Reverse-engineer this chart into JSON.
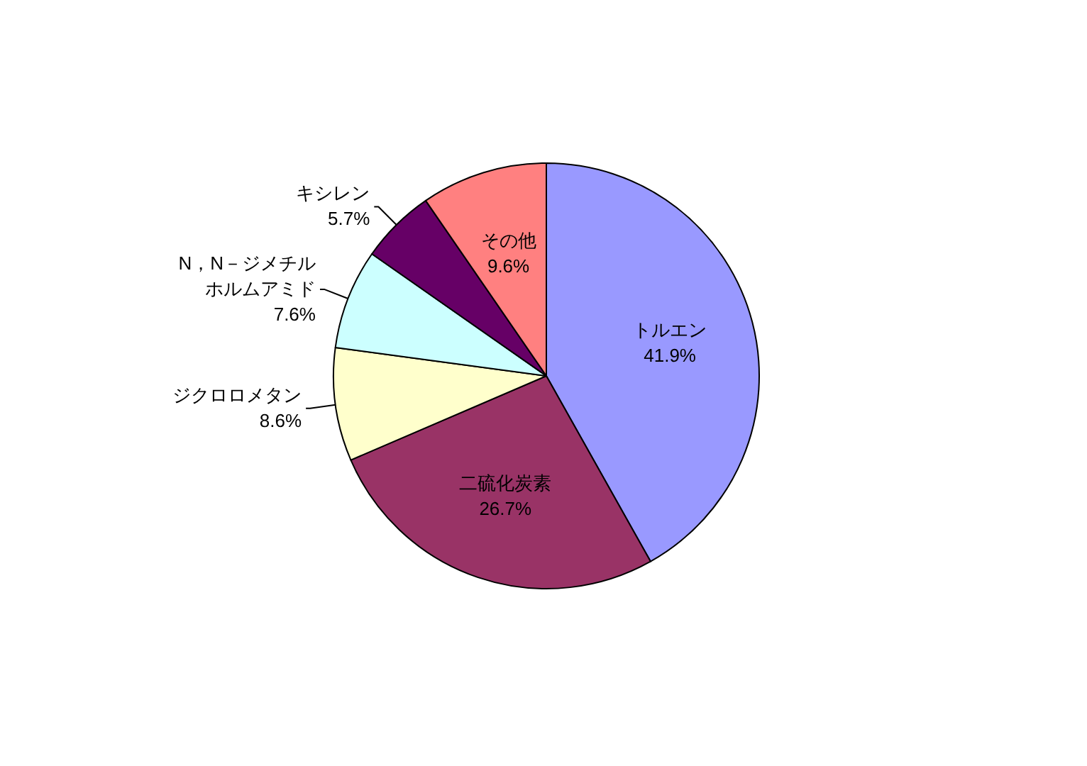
{
  "chart_data": {
    "type": "pie",
    "categories": [
      "トルエン",
      "二硫化炭素",
      "ジクロロメタン",
      "N，N－ジメチルホルムアミド",
      "キシレン",
      "その他"
    ],
    "values": [
      41.9,
      26.7,
      8.6,
      7.6,
      5.7,
      9.6
    ],
    "colors": [
      "#9999ff",
      "#993366",
      "#ffffcc",
      "#ccffff",
      "#660066",
      "#ff8080"
    ],
    "value_labels": [
      "41.9%",
      "26.7%",
      "8.6%",
      "7.6%",
      "5.7%",
      "9.6%"
    ]
  }
}
